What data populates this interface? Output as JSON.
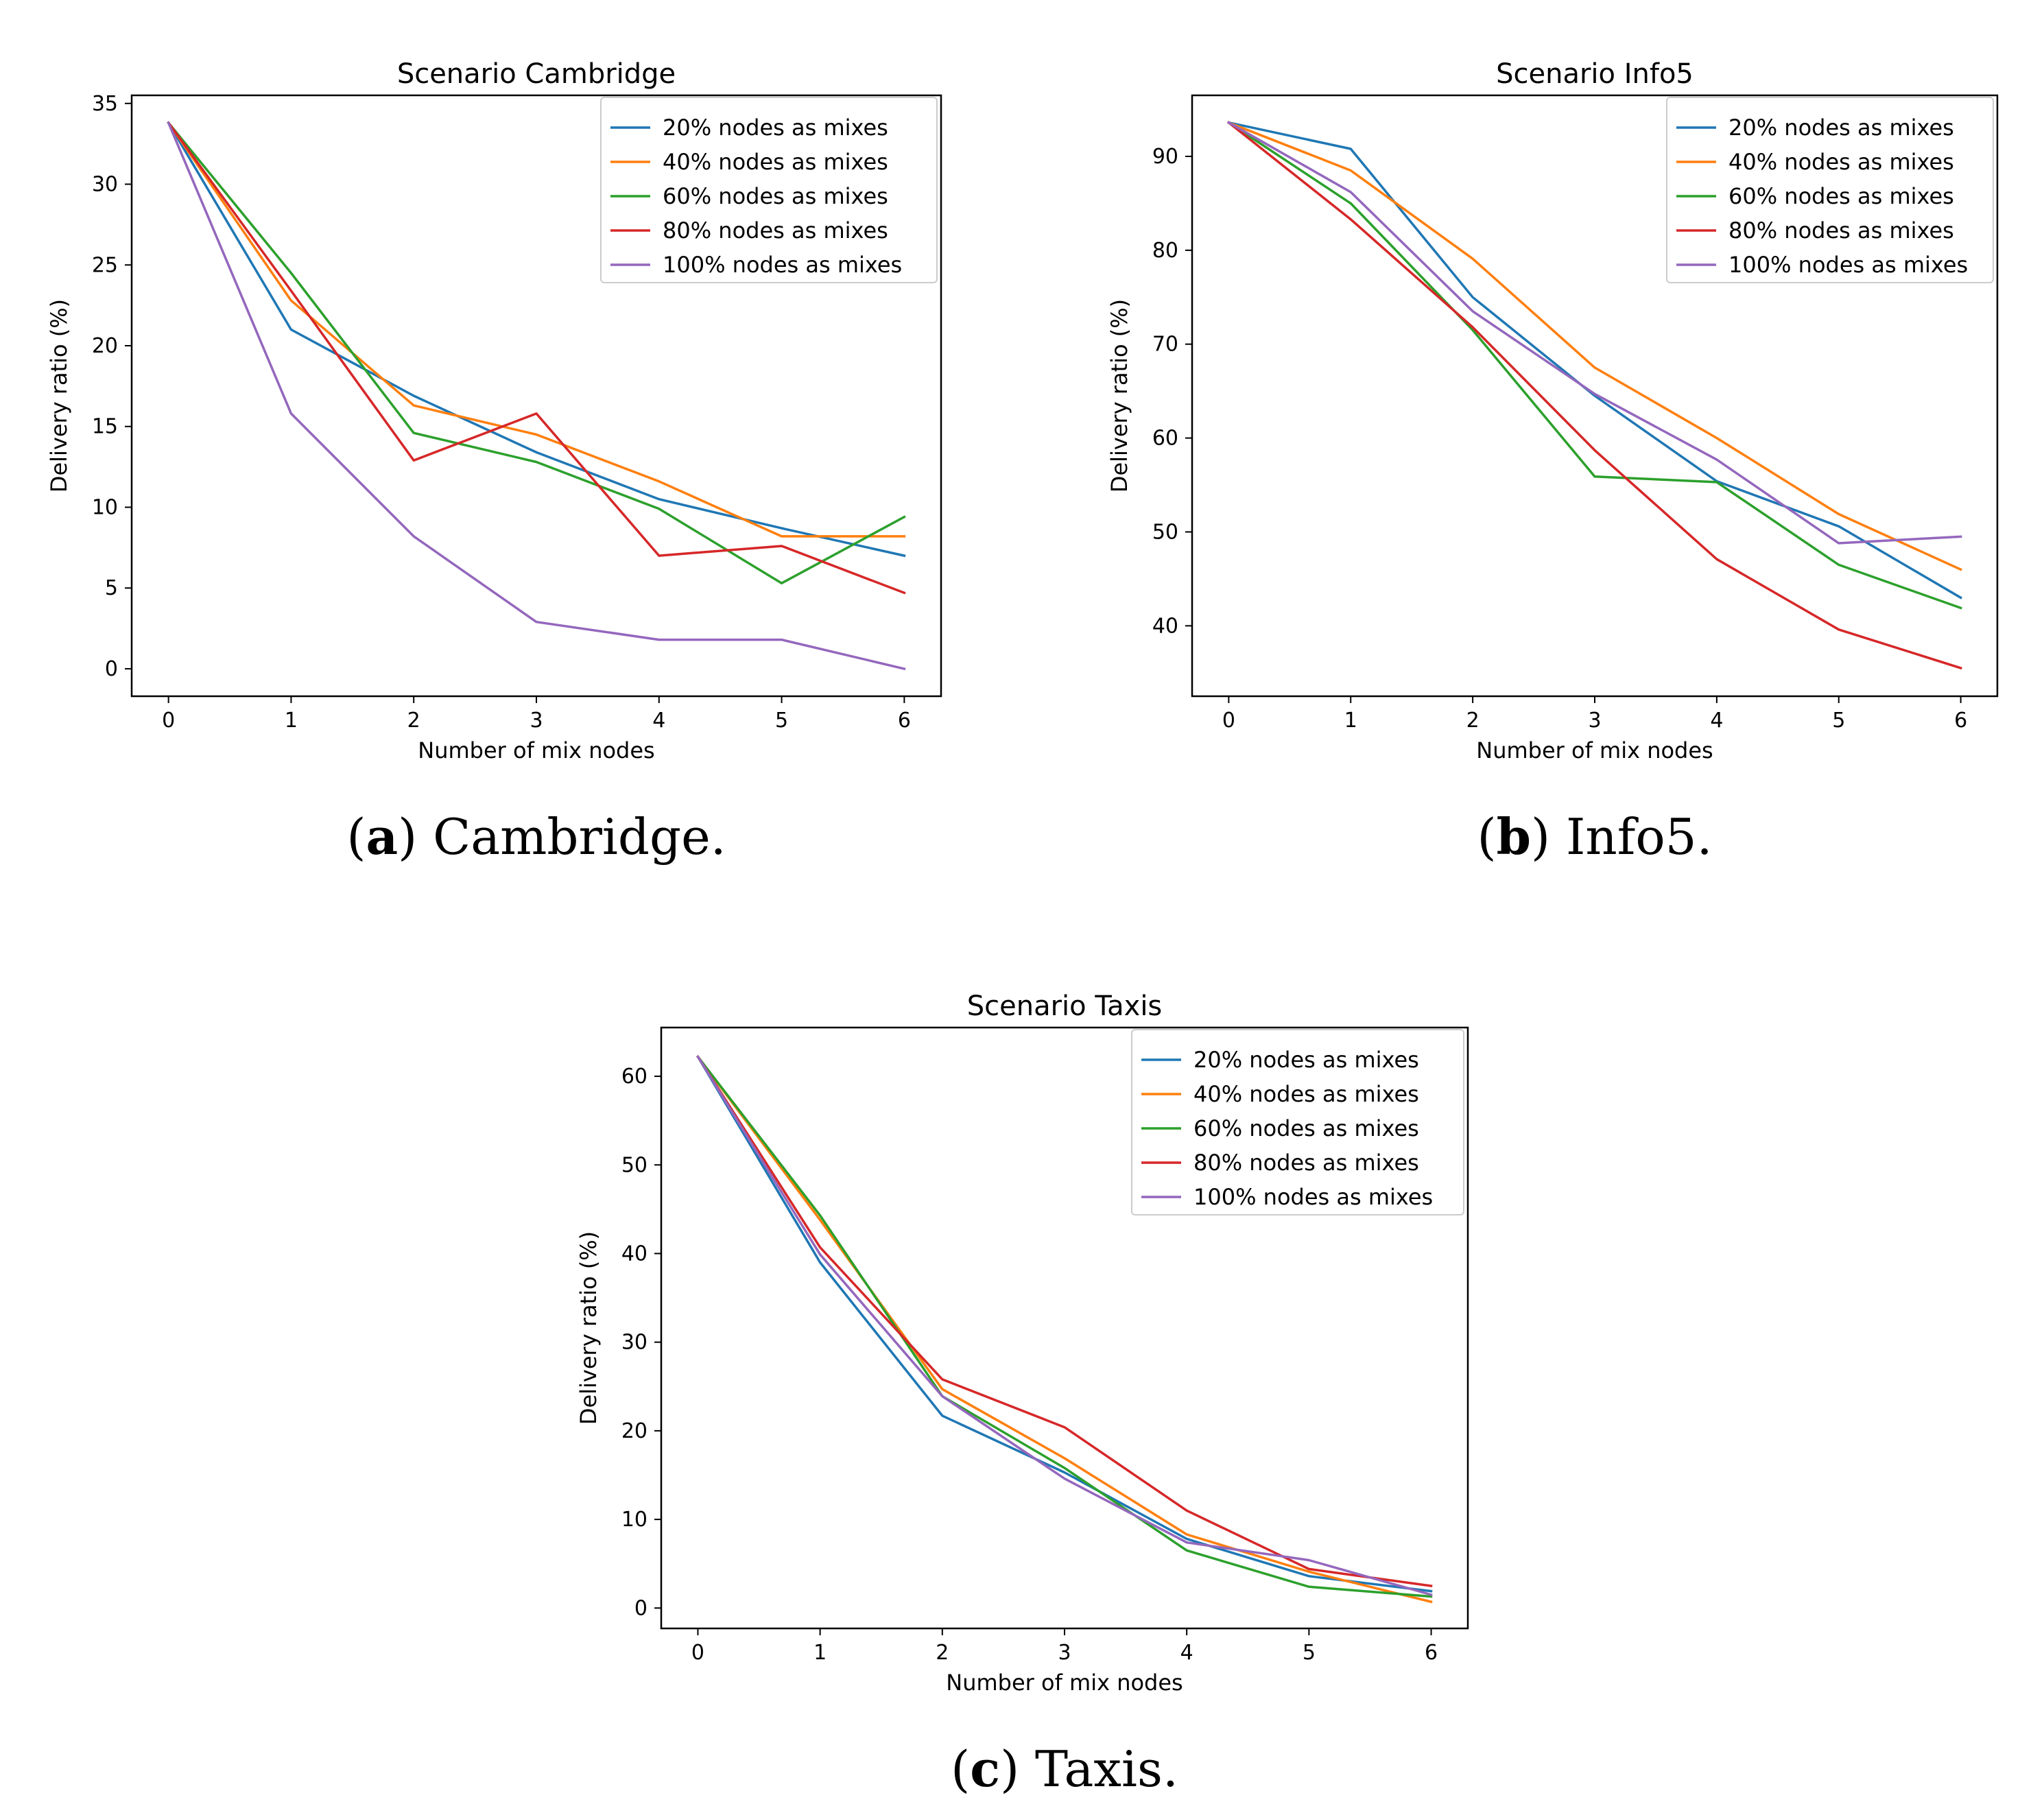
{
  "colors": [
    "#1f77b4",
    "#ff7f0e",
    "#2ca02c",
    "#d62728",
    "#9467bd"
  ],
  "chart_data": [
    {
      "type": "line",
      "title": "Scenario Cambridge",
      "xlabel": "Number of mix nodes",
      "ylabel": "Delivery ratio (%)",
      "x": [
        0,
        1,
        2,
        3,
        4,
        5,
        6
      ],
      "xlim": [
        -0.3,
        6.3
      ],
      "ylim": [
        -1.7,
        35.5
      ],
      "yticks": [
        0,
        5,
        10,
        15,
        20,
        25,
        30,
        35
      ],
      "xticks": [
        0,
        1,
        2,
        3,
        4,
        5,
        6
      ],
      "legend_position": "top-right",
      "caption_letter": "a",
      "caption_text": "Cambridge.",
      "series": [
        {
          "name": "20% nodes as mixes",
          "values": [
            33.8,
            21.0,
            16.9,
            13.4,
            10.5,
            8.7,
            7.0
          ]
        },
        {
          "name": "40% nodes as mixes",
          "values": [
            33.8,
            22.8,
            16.3,
            14.5,
            11.6,
            8.2,
            8.2
          ]
        },
        {
          "name": "60% nodes as mixes",
          "values": [
            33.8,
            24.5,
            14.6,
            12.8,
            9.9,
            5.3,
            9.4
          ]
        },
        {
          "name": "80% nodes as mixes",
          "values": [
            33.8,
            23.4,
            12.9,
            15.8,
            7.0,
            7.6,
            4.7
          ]
        },
        {
          "name": "100% nodes as mixes",
          "values": [
            33.8,
            15.8,
            8.2,
            2.9,
            1.8,
            1.8,
            0.0
          ]
        }
      ]
    },
    {
      "type": "line",
      "title": "Scenario Info5",
      "xlabel": "Number of mix nodes",
      "ylabel": "Delivery ratio (%)",
      "x": [
        0,
        1,
        2,
        3,
        4,
        5,
        6
      ],
      "xlim": [
        -0.3,
        6.3
      ],
      "ylim": [
        32.5,
        96.5
      ],
      "yticks": [
        40,
        50,
        60,
        70,
        80,
        90
      ],
      "xticks": [
        0,
        1,
        2,
        3,
        4,
        5,
        6
      ],
      "legend_position": "top-right",
      "caption_letter": "b",
      "caption_text": "Info5.",
      "series": [
        {
          "name": "20% nodes as mixes",
          "values": [
            93.6,
            90.8,
            75.0,
            64.5,
            55.4,
            50.6,
            43.0
          ]
        },
        {
          "name": "40% nodes as mixes",
          "values": [
            93.6,
            88.5,
            79.1,
            67.5,
            60.0,
            51.9,
            46.0
          ]
        },
        {
          "name": "60% nodes as mixes",
          "values": [
            93.6,
            85.0,
            71.5,
            55.9,
            55.3,
            46.5,
            41.9
          ]
        },
        {
          "name": "80% nodes as mixes",
          "values": [
            93.6,
            83.3,
            71.8,
            58.7,
            47.1,
            39.6,
            35.5
          ]
        },
        {
          "name": "100% nodes as mixes",
          "values": [
            93.6,
            86.2,
            73.5,
            64.7,
            57.7,
            48.8,
            49.5
          ]
        }
      ]
    },
    {
      "type": "line",
      "title": "Scenario Taxis",
      "xlabel": "Number of mix nodes",
      "ylabel": "Delivery ratio (%)",
      "x": [
        0,
        1,
        2,
        3,
        4,
        5,
        6
      ],
      "xlim": [
        -0.3,
        6.3
      ],
      "ylim": [
        -2.3,
        65.5
      ],
      "yticks": [
        0,
        10,
        20,
        30,
        40,
        50,
        60
      ],
      "xticks": [
        0,
        1,
        2,
        3,
        4,
        5,
        6
      ],
      "legend_position": "top-right",
      "caption_letter": "c",
      "caption_text": "Taxis.",
      "series": [
        {
          "name": "20% nodes as mixes",
          "values": [
            62.2,
            39.0,
            21.7,
            15.3,
            7.8,
            3.6,
            1.9
          ]
        },
        {
          "name": "40% nodes as mixes",
          "values": [
            62.2,
            43.8,
            24.7,
            16.9,
            8.3,
            4.1,
            0.7
          ]
        },
        {
          "name": "60% nodes as mixes",
          "values": [
            62.2,
            44.3,
            23.9,
            15.8,
            6.5,
            2.4,
            1.3
          ]
        },
        {
          "name": "80% nodes as mixes",
          "values": [
            62.2,
            40.7,
            25.8,
            20.4,
            11.0,
            4.4,
            2.5
          ]
        },
        {
          "name": "100% nodes as mixes",
          "values": [
            62.2,
            39.9,
            23.9,
            14.6,
            7.4,
            5.4,
            1.5
          ]
        }
      ]
    }
  ]
}
